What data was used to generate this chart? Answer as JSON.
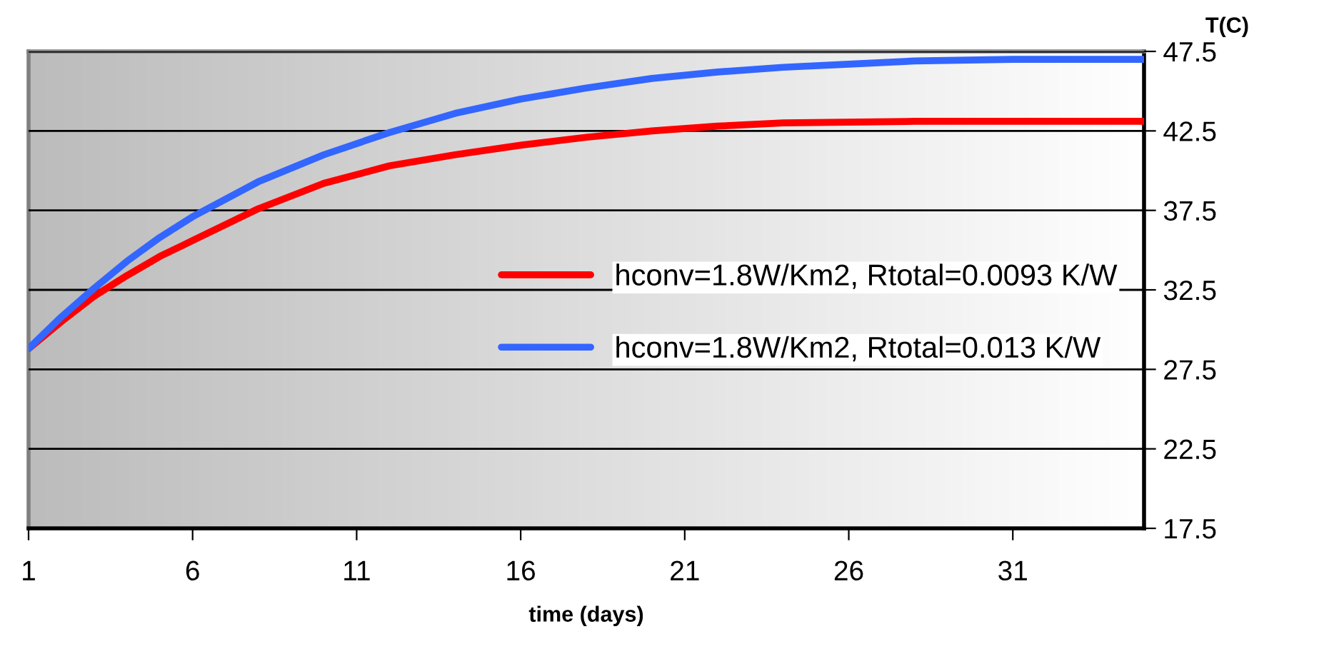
{
  "chart_data": {
    "type": "line",
    "xlabel": "time (days)",
    "ylabel": "T(C)",
    "xlim": [
      1,
      35
    ],
    "xticks": [
      1,
      6,
      11,
      16,
      21,
      26,
      31
    ],
    "ylim": [
      17.5,
      47.5
    ],
    "yticks": [
      17.5,
      22.5,
      27.5,
      32.5,
      37.5,
      42.5,
      47.5
    ],
    "grid": "y",
    "legend": "center right",
    "marker": "none",
    "line_style": "solid",
    "series": [
      {
        "name": "hconv=1.8W/Km2, Rtotal=0.0093 K/W",
        "color": "#ff0000",
        "x": [
          1,
          2,
          3,
          4,
          5,
          6,
          8,
          10,
          12,
          14,
          16,
          18,
          20,
          22,
          24,
          28,
          35
        ],
        "values": [
          28.8,
          30.5,
          32.1,
          33.4,
          34.6,
          35.6,
          37.6,
          39.2,
          40.3,
          41.0,
          41.6,
          42.1,
          42.5,
          42.8,
          43.0,
          43.1,
          43.1
        ]
      },
      {
        "name": "hconv=1.8W/Km2, Rtotal=0.013 K/W",
        "color": "#3366ff",
        "x": [
          1,
          2,
          3,
          4,
          5,
          6,
          8,
          10,
          12,
          14,
          16,
          18,
          20,
          22,
          24,
          26,
          28,
          31,
          35
        ],
        "values": [
          28.8,
          30.8,
          32.6,
          34.3,
          35.8,
          37.1,
          39.3,
          41.0,
          42.4,
          43.6,
          44.5,
          45.2,
          45.8,
          46.2,
          46.5,
          46.7,
          46.9,
          47.0,
          47.0
        ]
      }
    ]
  }
}
